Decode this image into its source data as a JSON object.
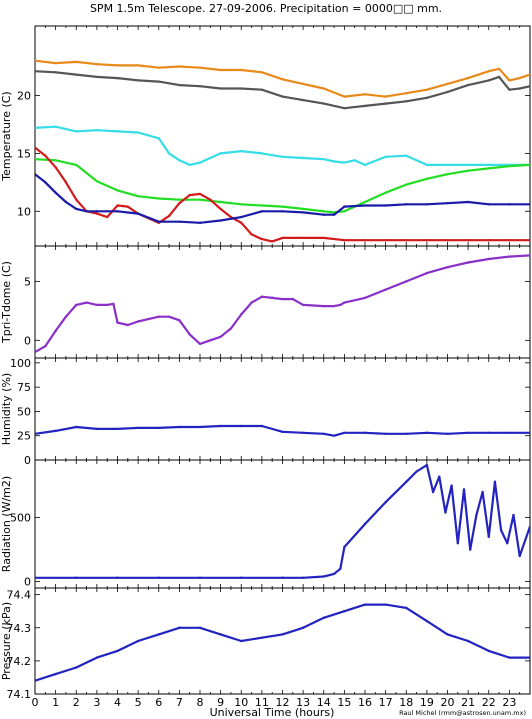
{
  "title": "SPM 1.5m Telescope. 27-09-2006. Precipitation = 0000□□ mm.",
  "xlabel": "Universal Time (hours)",
  "credit": "Raul Michel (rmm@astrosen.unam.mx)",
  "x_ticks": [
    "0",
    "1",
    "2",
    "3",
    "4",
    "5",
    "6",
    "7",
    "8",
    "9",
    "10",
    "11",
    "12",
    "13",
    "14",
    "15",
    "16",
    "17",
    "18",
    "19",
    "20",
    "21",
    "22",
    "23"
  ],
  "colors": {
    "orange": "#e8891a",
    "gray": "#555555",
    "cyan": "#35dde6",
    "red": "#d31a1a",
    "green": "#22dd22",
    "blue": "#1a1aa8",
    "purple": "#8a2fc8",
    "plotblue": "#2323c0"
  },
  "chart_data": [
    {
      "type": "line",
      "ylabel": "Temperature (C)",
      "xlim": [
        0,
        24
      ],
      "ylim": [
        7,
        26
      ],
      "yticks": [
        10,
        15,
        20
      ],
      "series": [
        {
          "color": "#e8891a",
          "x": [
            0,
            1,
            2,
            3,
            4,
            5,
            6,
            7,
            8,
            9,
            10,
            11,
            12,
            13,
            14,
            15,
            16,
            17,
            18,
            19,
            20,
            21,
            22,
            22.5,
            23,
            23.5,
            24
          ],
          "y": [
            23.0,
            22.8,
            22.9,
            22.7,
            22.6,
            22.6,
            22.4,
            22.5,
            22.4,
            22.2,
            22.2,
            22.0,
            21.4,
            21.0,
            20.6,
            19.9,
            20.1,
            19.9,
            20.2,
            20.5,
            21.0,
            21.5,
            22.1,
            22.3,
            21.3,
            21.5,
            21.8
          ]
        },
        {
          "color": "#555555",
          "x": [
            0,
            1,
            2,
            3,
            4,
            5,
            6,
            7,
            8,
            9,
            10,
            11,
            12,
            13,
            14,
            15,
            16,
            17,
            18,
            19,
            20,
            21,
            22,
            22.5,
            23,
            23.5,
            24
          ],
          "y": [
            22.1,
            22.0,
            21.8,
            21.6,
            21.5,
            21.3,
            21.2,
            20.9,
            20.8,
            20.6,
            20.6,
            20.5,
            19.9,
            19.6,
            19.3,
            18.9,
            19.1,
            19.3,
            19.5,
            19.8,
            20.3,
            20.9,
            21.3,
            21.6,
            20.5,
            20.6,
            20.8
          ]
        },
        {
          "color": "#35dde6",
          "x": [
            0,
            1,
            2,
            3,
            4,
            5,
            6,
            6.5,
            7,
            7.5,
            8,
            9,
            10,
            11,
            12,
            13,
            14,
            14.5,
            15,
            15.5,
            16,
            17,
            18,
            19,
            20,
            21,
            22,
            23,
            24
          ],
          "y": [
            17.2,
            17.3,
            16.9,
            17.0,
            16.9,
            16.8,
            16.3,
            15.0,
            14.4,
            14.0,
            14.2,
            15.0,
            15.2,
            15.0,
            14.7,
            14.6,
            14.5,
            14.3,
            14.2,
            14.4,
            14.0,
            14.7,
            14.8,
            14.0,
            14.0,
            14.0,
            14.0,
            14.0,
            14.0
          ]
        },
        {
          "color": "#22dd22",
          "x": [
            0,
            1,
            2,
            3,
            4,
            5,
            6,
            7,
            8,
            9,
            10,
            11,
            12,
            13,
            14,
            14.5,
            15,
            16,
            17,
            18,
            19,
            20,
            21,
            22,
            23,
            24
          ],
          "y": [
            14.5,
            14.4,
            14.0,
            12.6,
            11.8,
            11.3,
            11.1,
            11.0,
            11.0,
            10.8,
            10.6,
            10.5,
            10.4,
            10.2,
            10.0,
            9.9,
            10.0,
            10.8,
            11.6,
            12.3,
            12.8,
            13.2,
            13.5,
            13.7,
            13.9,
            14.0
          ]
        },
        {
          "color": "#d31a1a",
          "x": [
            0,
            0.5,
            1,
            1.5,
            2,
            2.5,
            3,
            3.5,
            4,
            4.5,
            5,
            5.5,
            6,
            6.5,
            7,
            7.5,
            8,
            8.5,
            9,
            9.5,
            10,
            10.5,
            11,
            11.5,
            12,
            13,
            14,
            15,
            16,
            17,
            18,
            19,
            20,
            21,
            22,
            23,
            24
          ],
          "y": [
            15.5,
            14.8,
            13.8,
            12.5,
            11.0,
            10.0,
            9.8,
            9.5,
            10.5,
            10.4,
            9.8,
            9.4,
            9.0,
            9.6,
            10.7,
            11.4,
            11.5,
            11.0,
            10.2,
            9.5,
            9.0,
            8.0,
            7.6,
            7.4,
            7.7,
            7.7,
            7.7,
            7.5,
            7.5,
            7.5,
            7.5,
            7.5,
            7.5,
            7.5,
            7.5,
            7.5,
            7.5
          ]
        },
        {
          "color": "#1a1aa8",
          "x": [
            0,
            0.5,
            1,
            1.5,
            2,
            2.5,
            3,
            3.5,
            4,
            5,
            6,
            7,
            8,
            9,
            10,
            11,
            12,
            13,
            14,
            14.5,
            15,
            16,
            17,
            18,
            19,
            20,
            21,
            22,
            23,
            24
          ],
          "y": [
            13.2,
            12.5,
            11.6,
            10.8,
            10.2,
            10.0,
            10.0,
            10.0,
            10.0,
            9.8,
            9.1,
            9.1,
            9.0,
            9.2,
            9.5,
            10.0,
            10.0,
            9.9,
            9.7,
            9.7,
            10.4,
            10.5,
            10.5,
            10.6,
            10.6,
            10.7,
            10.8,
            10.6,
            10.6,
            10.6
          ]
        }
      ]
    },
    {
      "type": "line",
      "ylabel": "Tpri-Tdome (C)",
      "xlim": [
        0,
        24
      ],
      "ylim": [
        -1.5,
        8
      ],
      "yticks": [
        0,
        5
      ],
      "series": [
        {
          "color": "#8a2fc8",
          "x": [
            0,
            0.5,
            1,
            1.5,
            2,
            2.5,
            3,
            3.5,
            3.8,
            4.0,
            4.5,
            5,
            5.5,
            6,
            6.5,
            7,
            7.5,
            8,
            8.5,
            9,
            9.5,
            10,
            10.5,
            11,
            11.5,
            12,
            12.5,
            13,
            14,
            14.5,
            14.8,
            15,
            16,
            17,
            18,
            19,
            20,
            21,
            22,
            23,
            24
          ],
          "y": [
            -1.0,
            -0.5,
            0.8,
            2.0,
            3.0,
            3.2,
            3.0,
            3.0,
            3.1,
            1.5,
            1.3,
            1.6,
            1.8,
            2.0,
            2.0,
            1.7,
            0.5,
            -0.3,
            0.0,
            0.3,
            1.0,
            2.2,
            3.2,
            3.7,
            3.6,
            3.5,
            3.5,
            3.0,
            2.9,
            2.9,
            3.0,
            3.2,
            3.6,
            4.3,
            5.0,
            5.7,
            6.2,
            6.6,
            6.9,
            7.1,
            7.2
          ]
        }
      ]
    },
    {
      "type": "line",
      "ylabel": "Humidity (%)",
      "xlim": [
        0,
        24
      ],
      "ylim": [
        0,
        105
      ],
      "yticks": [
        0,
        25,
        50,
        75,
        100
      ],
      "series": [
        {
          "color": "#2323c0",
          "x": [
            0,
            1,
            2,
            3,
            4,
            5,
            6,
            7,
            8,
            9,
            10,
            11,
            12,
            13,
            14,
            14.5,
            15,
            16,
            17,
            18,
            19,
            20,
            21,
            22,
            23,
            24
          ],
          "y": [
            27,
            30,
            34,
            32,
            32,
            33,
            33,
            34,
            34,
            35,
            35,
            35,
            29,
            28,
            27,
            25,
            28,
            28,
            27,
            27,
            28,
            27,
            28,
            28,
            28,
            28
          ]
        }
      ]
    },
    {
      "type": "line",
      "ylabel": "Radiation (W/m2)",
      "xlim": [
        0,
        24
      ],
      "ylim": [
        -50,
        950
      ],
      "yticks": [
        0,
        500
      ],
      "series": [
        {
          "color": "#2323c0",
          "x": [
            0,
            2,
            4,
            6,
            8,
            10,
            12,
            13,
            14,
            14.5,
            14.8,
            15,
            16,
            17,
            18,
            18.5,
            19,
            19.3,
            19.6,
            19.9,
            20.2,
            20.5,
            20.8,
            21.1,
            21.4,
            21.7,
            22,
            22.3,
            22.6,
            22.9,
            23.2,
            23.5,
            24
          ],
          "y": [
            30,
            30,
            30,
            30,
            30,
            30,
            30,
            30,
            40,
            60,
            100,
            270,
            450,
            620,
            780,
            860,
            910,
            700,
            820,
            540,
            750,
            300,
            720,
            250,
            520,
            700,
            350,
            780,
            400,
            300,
            520,
            200,
            430
          ]
        }
      ]
    },
    {
      "type": "line",
      "ylabel": "Pressure (kPa)",
      "xlim": [
        0,
        24
      ],
      "ylim": [
        74.1,
        74.42
      ],
      "yticks": [
        74.1,
        74.2,
        74.3,
        74.4
      ],
      "series": [
        {
          "color": "#2323c0",
          "x": [
            0,
            1,
            2,
            3,
            4,
            5,
            6,
            7,
            8,
            9,
            10,
            11,
            12,
            13,
            14,
            15,
            16,
            17,
            18,
            19,
            20,
            21,
            22,
            23,
            24
          ],
          "y": [
            74.14,
            74.16,
            74.18,
            74.21,
            74.23,
            74.26,
            74.28,
            74.3,
            74.3,
            74.28,
            74.26,
            74.27,
            74.28,
            74.3,
            74.33,
            74.35,
            74.37,
            74.37,
            74.36,
            74.32,
            74.28,
            74.26,
            74.23,
            74.21,
            74.21
          ]
        }
      ]
    }
  ]
}
